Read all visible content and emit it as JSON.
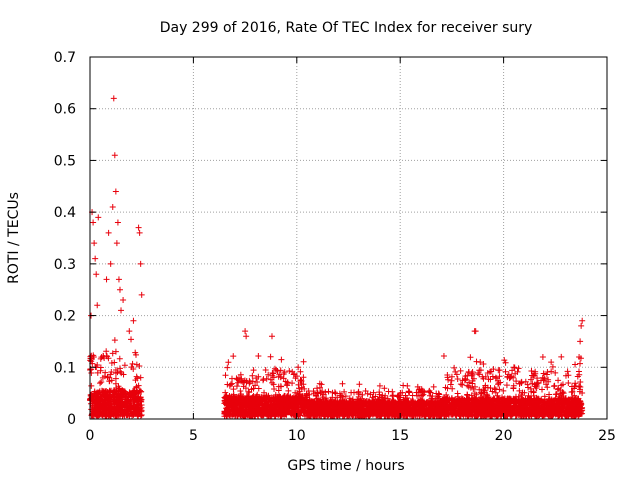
{
  "chart_data": {
    "type": "scatter",
    "title": "Day 299 of 2016, Rate Of TEC Index for receiver sury",
    "xlabel": "GPS time / hours",
    "ylabel": "ROTI / TECUs",
    "xlim": [
      0,
      25
    ],
    "ylim": [
      0,
      0.7
    ],
    "xticks": [
      "0",
      "5",
      "10",
      "15",
      "20",
      "25"
    ],
    "yticks": [
      "0",
      "0.1",
      "0.2",
      "0.3",
      "0.4",
      "0.5",
      "0.6",
      "0.7"
    ],
    "grid": true,
    "marker": "+",
    "series_color": "#e8000b",
    "series": [
      {
        "name": "ROTI",
        "segments": [
          {
            "x_start": 0.0,
            "x_end": 2.5,
            "baseline_max": 0.05,
            "typical_max": 0.12
          },
          {
            "x_start": 6.5,
            "x_end": 10.5,
            "baseline_max": 0.04,
            "typical_max": 0.09
          },
          {
            "x_start": 10.5,
            "x_end": 17.0,
            "baseline_max": 0.03,
            "typical_max": 0.05
          },
          {
            "x_start": 17.0,
            "x_end": 23.8,
            "baseline_max": 0.035,
            "typical_max": 0.09
          }
        ],
        "highlights": [
          {
            "x": 0.05,
            "y": 0.2
          },
          {
            "x": 0.1,
            "y": 0.4
          },
          {
            "x": 0.15,
            "y": 0.38
          },
          {
            "x": 0.2,
            "y": 0.34
          },
          {
            "x": 0.25,
            "y": 0.31
          },
          {
            "x": 0.3,
            "y": 0.28
          },
          {
            "x": 0.35,
            "y": 0.22
          },
          {
            "x": 0.4,
            "y": 0.39
          },
          {
            "x": 0.8,
            "y": 0.27
          },
          {
            "x": 0.9,
            "y": 0.36
          },
          {
            "x": 1.0,
            "y": 0.3
          },
          {
            "x": 1.1,
            "y": 0.41
          },
          {
            "x": 1.15,
            "y": 0.62
          },
          {
            "x": 1.2,
            "y": 0.51
          },
          {
            "x": 1.25,
            "y": 0.44
          },
          {
            "x": 1.3,
            "y": 0.34
          },
          {
            "x": 1.35,
            "y": 0.38
          },
          {
            "x": 1.4,
            "y": 0.27
          },
          {
            "x": 1.45,
            "y": 0.25
          },
          {
            "x": 1.5,
            "y": 0.21
          },
          {
            "x": 1.6,
            "y": 0.23
          },
          {
            "x": 1.9,
            "y": 0.17
          },
          {
            "x": 2.1,
            "y": 0.19
          },
          {
            "x": 2.35,
            "y": 0.37
          },
          {
            "x": 2.4,
            "y": 0.36
          },
          {
            "x": 2.45,
            "y": 0.3
          },
          {
            "x": 2.5,
            "y": 0.24
          },
          {
            "x": 7.5,
            "y": 0.17
          },
          {
            "x": 7.55,
            "y": 0.16
          },
          {
            "x": 8.8,
            "y": 0.16
          },
          {
            "x": 18.6,
            "y": 0.17
          },
          {
            "x": 18.65,
            "y": 0.17
          },
          {
            "x": 23.8,
            "y": 0.19
          },
          {
            "x": 23.75,
            "y": 0.18
          },
          {
            "x": 23.7,
            "y": 0.15
          },
          {
            "x": 23.65,
            "y": 0.12
          },
          {
            "x": 21.9,
            "y": 0.12
          },
          {
            "x": 22.3,
            "y": 0.11
          },
          {
            "x": 20.5,
            "y": 0.1
          }
        ]
      }
    ]
  }
}
